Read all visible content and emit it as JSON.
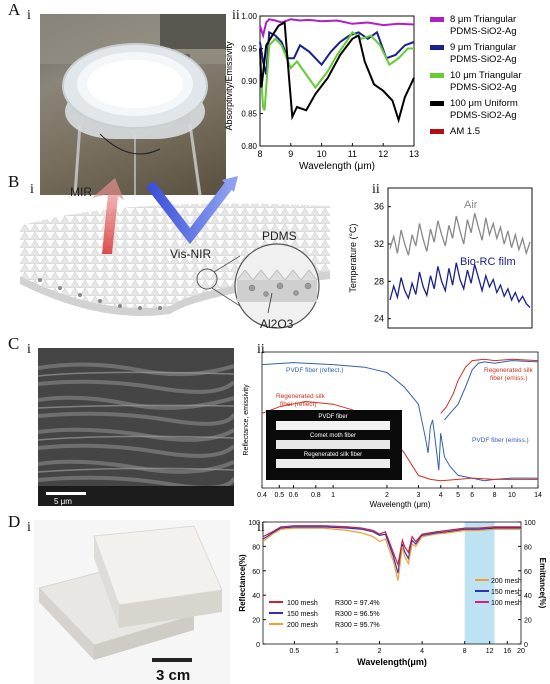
{
  "panels": {
    "A": {
      "label": "A",
      "sub_i": "i",
      "sub_ii": "ii"
    },
    "B": {
      "label": "B",
      "sub_i": "i",
      "sub_ii": "ii"
    },
    "C": {
      "label": "C",
      "sub_i": "i",
      "sub_ii": "ii"
    },
    "D": {
      "label": "D",
      "sub_i": "i",
      "sub_ii": "ii"
    }
  },
  "schematic_B": {
    "mir": "MIR",
    "visnir": "Vis-NIR",
    "pdms": "PDMS",
    "al2o3": "Al2O3"
  },
  "sem_C": {
    "scale": "5 μm"
  },
  "photo_D": {
    "scale": "3 cm"
  },
  "inset_C": {
    "fiber1": "PVDF fiber",
    "fiber2": "Comet moth fiber",
    "fiber3": "Regenerated silk fiber"
  },
  "colors": {
    "purple": "#b01ec8",
    "navy": "#1a2090",
    "green": "#66cc33",
    "black": "#000000",
    "red": "#b01010",
    "gray": "#888888",
    "blue": "#3060b0",
    "redC": "#d03020",
    "dred": "#d02030",
    "dblue": "#3030c0",
    "dorange": "#f0a030",
    "dpink": "#d02080",
    "band": "#bde3f3"
  },
  "chart_data": [
    {
      "type": "line",
      "xlabel": "Wavelength (μm)",
      "ylabel": "Absorptivity/Emissivity",
      "xlim": [
        8,
        13
      ],
      "ylim": [
        0.8,
        1.0
      ],
      "xticks": [
        "8",
        "9",
        "10",
        "11",
        "12",
        "13"
      ],
      "yticks": [
        "0.80",
        "0.85",
        "0.90",
        "0.95",
        "1.00"
      ],
      "legend_position": "right",
      "legend": [
        "8 μm Triangular PDMS-SiO2-Ag",
        "9 μm Triangular PDMS-SiO2-Ag",
        "10 μm Triangular PDMS-SiO2-Ag",
        "100 μm Uniform PDMS-SiO2-Ag",
        "AM 1.5"
      ],
      "series": [
        {
          "name": "8 μm Triangular PDMS-SiO2-Ag",
          "color": "purple",
          "x": [
            8.0,
            8.1,
            8.2,
            8.3,
            8.5,
            8.7,
            9.0,
            9.3,
            9.6,
            10.0,
            10.5,
            11.0,
            11.5,
            12.0,
            12.5,
            13.0
          ],
          "y": [
            0.985,
            0.97,
            0.99,
            0.995,
            0.993,
            0.99,
            0.995,
            0.993,
            0.994,
            0.992,
            0.993,
            0.988,
            0.99,
            0.986,
            0.988,
            0.987
          ]
        },
        {
          "name": "9 μm Triangular PDMS-SiO2-Ag",
          "color": "navy",
          "x": [
            8.0,
            8.1,
            8.2,
            8.3,
            8.5,
            8.7,
            8.9,
            9.1,
            9.3,
            9.6,
            10.0,
            10.3,
            10.6,
            10.9,
            11.2,
            11.5,
            11.8,
            12.1,
            12.4,
            12.7,
            13.0
          ],
          "y": [
            0.96,
            0.93,
            0.91,
            0.975,
            0.97,
            0.96,
            0.935,
            0.935,
            0.955,
            0.945,
            0.925,
            0.945,
            0.96,
            0.97,
            0.975,
            0.965,
            0.975,
            0.935,
            0.94,
            0.955,
            0.96
          ]
        },
        {
          "name": "10 μm Triangular PDMS-SiO2-Ag",
          "color": "green",
          "x": [
            8.0,
            8.1,
            8.15,
            8.3,
            8.5,
            8.7,
            9.0,
            9.2,
            9.5,
            9.8,
            10.2,
            10.5,
            10.8,
            11.0,
            11.3,
            11.6,
            11.9,
            12.2,
            12.5,
            12.8,
            13.0
          ],
          "y": [
            0.93,
            0.86,
            0.855,
            0.955,
            0.965,
            0.955,
            0.92,
            0.93,
            0.91,
            0.89,
            0.915,
            0.94,
            0.96,
            0.975,
            0.965,
            0.97,
            0.955,
            0.925,
            0.935,
            0.95,
            0.95
          ]
        },
        {
          "name": "100 μm Uniform PDMS-SiO2-Ag",
          "color": "black",
          "x": [
            8.0,
            8.05,
            8.2,
            8.4,
            8.6,
            8.8,
            8.95,
            9.05,
            9.2,
            9.5,
            9.8,
            10.2,
            10.6,
            11.0,
            11.2,
            11.4,
            11.7,
            12.0,
            12.3,
            12.5,
            12.7,
            13.0
          ],
          "y": [
            0.95,
            0.89,
            0.955,
            0.97,
            0.985,
            0.99,
            0.9,
            0.845,
            0.86,
            0.855,
            0.88,
            0.905,
            0.94,
            0.965,
            0.97,
            0.93,
            0.895,
            0.885,
            0.87,
            0.84,
            0.875,
            0.905
          ]
        }
      ]
    },
    {
      "type": "line",
      "ylabel": "Temperature (°C)",
      "ylim": [
        23,
        38
      ],
      "yticks": [
        "24",
        "28",
        "32",
        "36"
      ],
      "annotations": [
        "Air",
        "Bio-RC film"
      ],
      "series": [
        {
          "name": "Air",
          "color": "gray",
          "values": [
            31.5,
            32.8,
            31.0,
            33.5,
            32.0,
            30.8,
            33.0,
            31.8,
            34.2,
            32.5,
            31.2,
            33.6,
            32.2,
            34.5,
            33.0,
            31.8,
            34.0,
            32.6,
            35.0,
            33.4,
            32.0,
            34.6,
            33.2,
            35.3,
            33.8,
            32.4,
            34.8,
            33.0,
            34.2,
            32.6,
            33.8,
            32.0,
            33.4,
            31.6,
            33.0,
            31.4,
            32.6,
            31.0,
            32.2
          ]
        },
        {
          "name": "Bio-RC film",
          "color": "navy",
          "values": [
            26.0,
            27.5,
            26.3,
            28.4,
            27.0,
            26.2,
            27.8,
            26.6,
            29.0,
            27.4,
            26.5,
            28.6,
            27.2,
            29.6,
            28.0,
            27.0,
            29.4,
            27.6,
            30.0,
            28.2,
            27.2,
            29.2,
            27.8,
            29.8,
            28.4,
            27.0,
            28.6,
            27.4,
            28.2,
            26.8,
            27.6,
            26.4,
            27.2,
            26.0,
            26.8,
            25.8,
            26.4,
            25.6,
            25.2
          ]
        }
      ]
    },
    {
      "type": "line",
      "xlabel": "Wavelength (μm)",
      "ylabel": "Reflectance, emissivity",
      "xscale": "log",
      "xlim": [
        0.4,
        14
      ],
      "xticks": [
        "0.4",
        "0.5",
        "0.6",
        "0.8",
        "1",
        "2",
        "3",
        "4",
        "5",
        "6",
        "8",
        "10",
        "14"
      ],
      "annotations": [
        "PVDF fiber (reflect.)",
        "Regenerated silk fiber (reflect.)",
        "Regenerated silk fiber (emiss.)",
        "PVDF fiber (emiss.)"
      ],
      "series": [
        {
          "name": "PVDF fiber (reflect.)",
          "color": "blue",
          "x": [
            0.4,
            0.6,
            1.0,
            1.5,
            2.0,
            2.5,
            3.0,
            3.3,
            3.4,
            3.5,
            3.6,
            3.7,
            3.9,
            4.0,
            4.2,
            4.5,
            5.0,
            6.0,
            7.0,
            8.0,
            10.0,
            14.0
          ],
          "y": [
            0.92,
            0.935,
            0.92,
            0.9,
            0.86,
            0.75,
            0.62,
            0.35,
            0.25,
            0.45,
            0.5,
            0.38,
            0.12,
            0.4,
            0.22,
            0.15,
            0.08,
            0.06,
            0.04,
            0.05,
            0.06,
            0.06
          ]
        },
        {
          "name": "Regenerated silk fiber (reflect.)",
          "color": "redC",
          "x": [
            0.4,
            0.5,
            0.7,
            1.0,
            1.5,
            2.0,
            2.5,
            3.0,
            3.5,
            4.0,
            5.0,
            6.0,
            8.0,
            10.0,
            14.0
          ],
          "y": [
            0.55,
            0.6,
            0.64,
            0.62,
            0.55,
            0.42,
            0.25,
            0.08,
            0.05,
            0.04,
            0.05,
            0.06,
            0.05,
            0.05,
            0.05
          ]
        },
        {
          "name": "Regenerated silk fiber (emiss.)",
          "color": "redC",
          "x": [
            4.0,
            4.3,
            4.7,
            5.0,
            5.5,
            6.0,
            7.0,
            8.0,
            10.0,
            14.0
          ],
          "y": [
            0.55,
            0.6,
            0.7,
            0.8,
            0.9,
            0.95,
            0.96,
            0.95,
            0.96,
            0.95
          ]
        },
        {
          "name": "PVDF fiber (emiss.)",
          "color": "blue",
          "x": [
            4.2,
            4.5,
            5.0,
            5.5,
            6.0,
            6.5,
            7.0,
            8.0,
            10.0,
            14.0
          ],
          "y": [
            0.5,
            0.55,
            0.62,
            0.75,
            0.88,
            0.93,
            0.94,
            0.93,
            0.95,
            0.94
          ]
        }
      ]
    },
    {
      "type": "line",
      "xlabel": "Wavelength(μm)",
      "ylabel": "Reflectance(%)",
      "y2label": "Emittance(%)",
      "xscale": "log",
      "xlim": [
        0.3,
        20
      ],
      "ylim": [
        0,
        100
      ],
      "xticks": [
        "0.5",
        "1",
        "2",
        "4",
        "8",
        "12",
        "16",
        "20"
      ],
      "yticks": [
        "0",
        "20",
        "40",
        "60",
        "80",
        "100"
      ],
      "band": [
        8,
        13
      ],
      "legend_left": [
        "100 mesh",
        "150 mesh",
        "200 mesh"
      ],
      "legend_right": [
        "200 mesh",
        "150 mesh",
        "100 mesh"
      ],
      "annotations": [
        "R300 = 97.4%",
        "R300 = 96.5%",
        "R300 = 95.7%"
      ],
      "series": [
        {
          "name": "100 mesh",
          "color": "dred",
          "x": [
            0.3,
            0.35,
            0.4,
            0.5,
            0.8,
            1.2,
            1.5,
            1.8,
            2.0,
            2.2,
            2.5,
            2.7,
            2.9,
            3.0,
            3.2,
            3.4,
            3.6,
            4.0,
            5.0,
            6.0,
            8.0,
            10.0,
            13.0,
            16.0,
            20.0
          ],
          "y": [
            88,
            92,
            96,
            97,
            97,
            96,
            95,
            93,
            90,
            92,
            75,
            65,
            85,
            80,
            75,
            88,
            84,
            90,
            92,
            93,
            95,
            95,
            96,
            96,
            96
          ]
        },
        {
          "name": "150 mesh",
          "color": "dblue",
          "x": [
            0.3,
            0.35,
            0.4,
            0.5,
            0.8,
            1.2,
            1.5,
            1.8,
            2.0,
            2.2,
            2.5,
            2.7,
            2.9,
            3.0,
            3.2,
            3.4,
            3.6,
            4.0,
            5.0,
            6.0,
            8.0,
            10.0,
            13.0,
            16.0,
            20.0
          ],
          "y": [
            86,
            91,
            95,
            96,
            96,
            95,
            94,
            92,
            89,
            90,
            72,
            58,
            82,
            76,
            70,
            85,
            82,
            89,
            91,
            92,
            94,
            94,
            95,
            95,
            95
          ]
        },
        {
          "name": "200 mesh",
          "color": "dorange",
          "x": [
            0.3,
            0.35,
            0.4,
            0.5,
            0.8,
            1.2,
            1.5,
            1.8,
            2.0,
            2.2,
            2.5,
            2.7,
            2.9,
            3.0,
            3.2,
            3.4,
            3.6,
            4.0,
            5.0,
            6.0,
            8.0,
            10.0,
            13.0,
            16.0,
            20.0
          ],
          "y": [
            84,
            90,
            94,
            95,
            95,
            93,
            91,
            88,
            84,
            86,
            68,
            52,
            80,
            72,
            66,
            82,
            80,
            88,
            90,
            91,
            93,
            93,
            94,
            94,
            94
          ]
        }
      ]
    }
  ],
  "chart_labels": {
    "A": {
      "xlabel": "Wavelength (μm)",
      "ylabel": "Absorptivity/Emissivity",
      "legend": [
        "8 μm Triangular",
        "PDMS-SiO2-Ag",
        "9 μm Triangular",
        "PDMS-SiO2-Ag",
        "10 μm Triangular",
        "PDMS-SiO2-Ag",
        "100 μm Uniform",
        "PDMS-SiO2-Ag",
        "AM 1.5"
      ]
    },
    "B": {
      "ylabel": "Temperature (°C)",
      "air": "Air",
      "film": "Bio-RC film"
    },
    "C": {
      "xlabel": "Wavelength (μm)",
      "ylabel": "Reflectance, emissivity",
      "pvdf_r": "PVDF fiber (reflect.)",
      "silk_r1": "Regenerated silk",
      "silk_r2": "fiber (reflect)",
      "silk_e1": "Regenerated silk",
      "silk_e2": "fiber (emiss.)",
      "pvdf_e": "PVDF fiber (emiss.)"
    },
    "D": {
      "xlabel": "Wavelength(μm)",
      "ylabel": "Reflectance(%)",
      "y2label": "Emittance(%)",
      "l1": "100 mesh",
      "l2": "150 mesh",
      "l3": "200 mesh",
      "r1": "200 mesh",
      "r2": "150 mesh",
      "r3": "100 mesh",
      "a1": "R300 = 97.4%",
      "a2": "R300 = 96.5%",
      "a3": "R300 = 95.7%"
    }
  }
}
